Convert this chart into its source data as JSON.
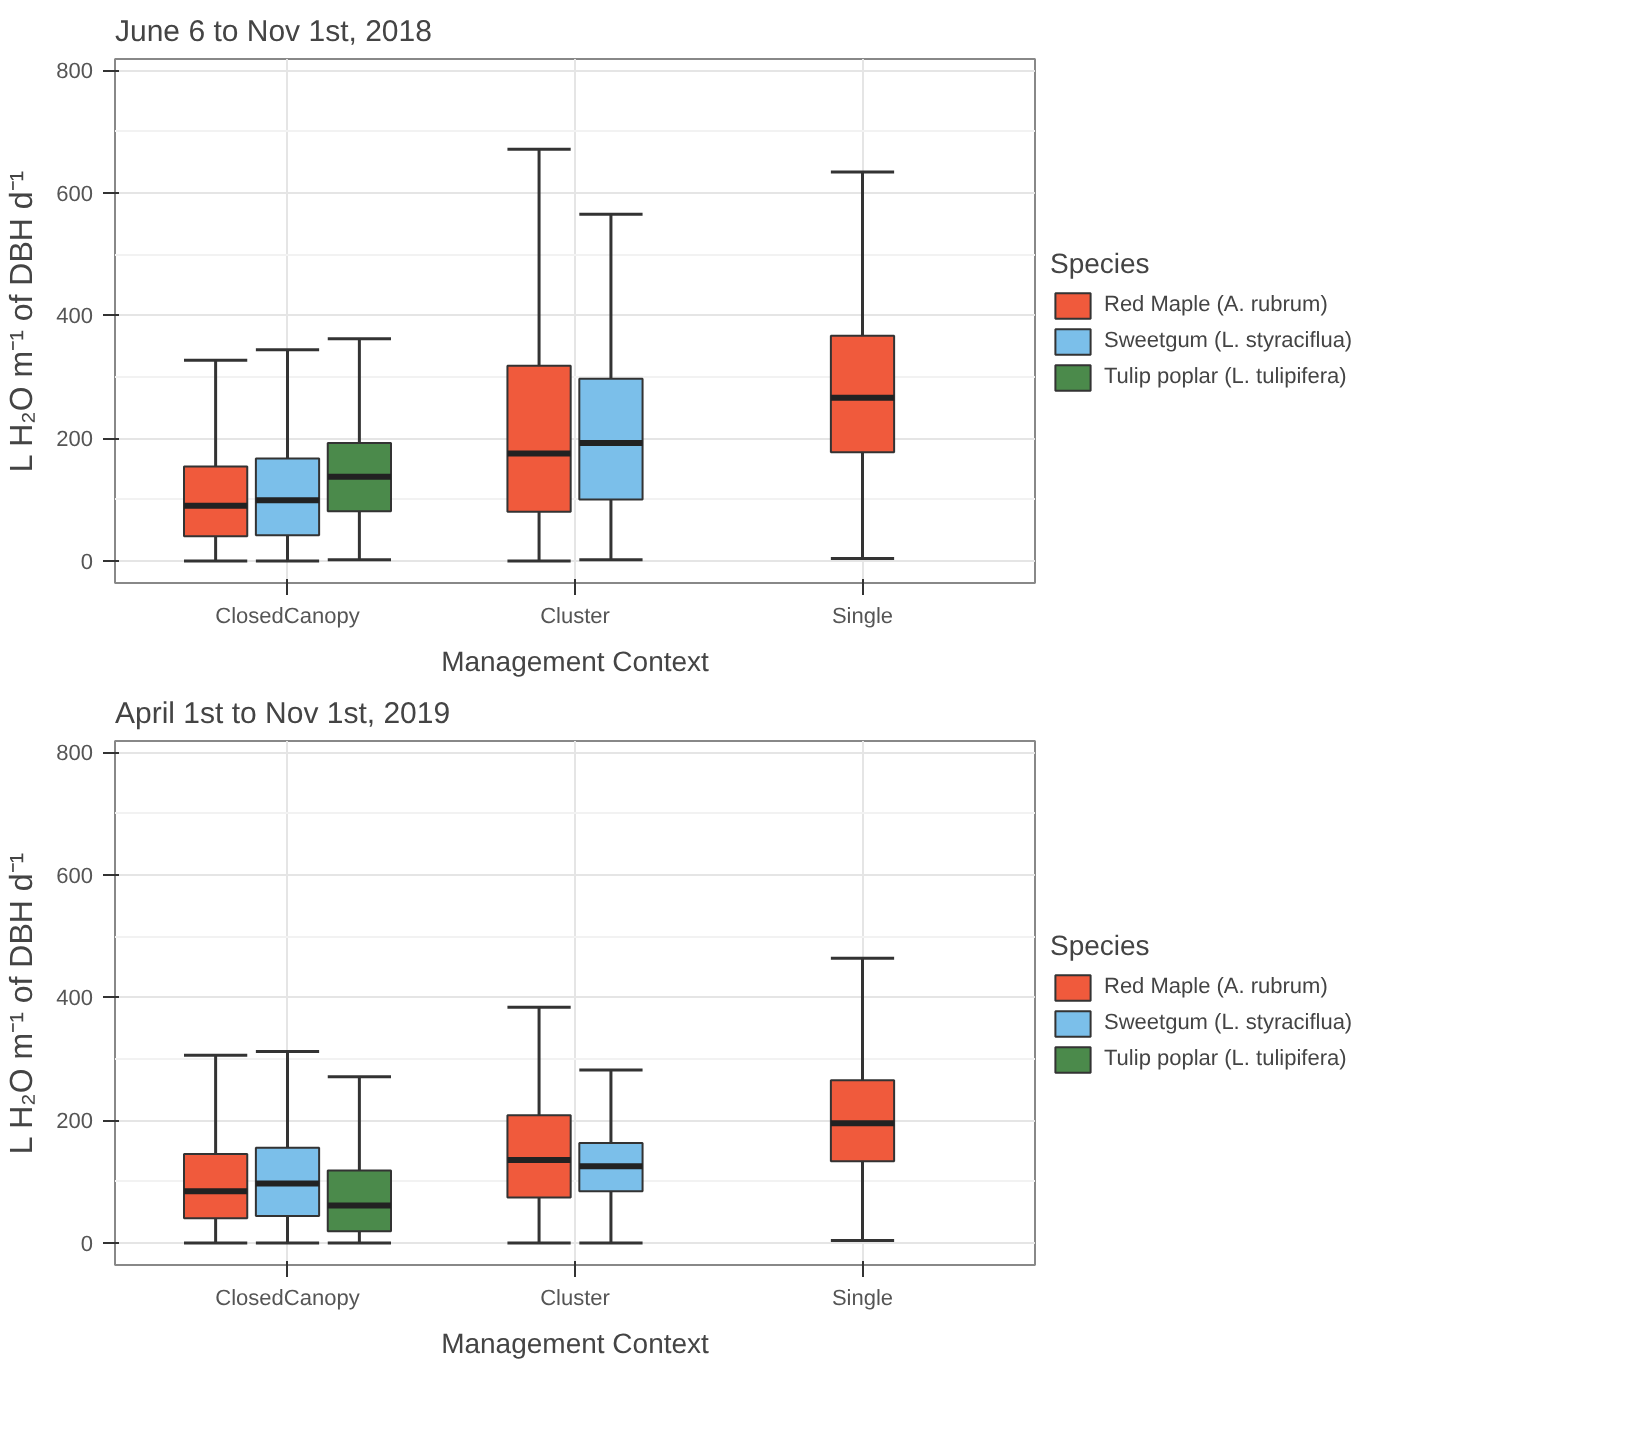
{
  "chart_data": [
    {
      "type": "box",
      "title": "June 6 to Nov 1st, 2018",
      "xlabel": "Management Context",
      "ylabel": "L H₂O m⁻¹ of DBH d⁻¹",
      "legend_title": "Species",
      "legend": "right",
      "grid": true,
      "categories": [
        "ClosedCanopy",
        "Cluster",
        "Single"
      ],
      "ylim": [
        -36,
        818
      ],
      "yticks": [
        0,
        200,
        400,
        600,
        800
      ],
      "series": [
        {
          "name": "Red Maple (A. rubrum)",
          "color": "#f05a3c",
          "boxes": [
            {
              "low": 0,
              "q1": 40,
              "median": 90,
              "q3": 154,
              "high": 327
            },
            {
              "low": 0,
              "q1": 80,
              "median": 175,
              "q3": 318,
              "high": 671
            },
            {
              "low": 4,
              "q1": 177,
              "median": 266,
              "q3": 367,
              "high": 634
            }
          ]
        },
        {
          "name": "Sweetgum (L. styraciflua)",
          "color": "#7bbfea",
          "boxes": [
            {
              "low": 0,
              "q1": 42,
              "median": 99,
              "q3": 167,
              "high": 344
            },
            {
              "low": 2,
              "q1": 100,
              "median": 192,
              "q3": 297,
              "high": 565
            },
            null
          ]
        },
        {
          "name": "Tulip poplar (L. tulipifera)",
          "color": "#4b8a4b",
          "boxes": [
            {
              "low": 2,
              "q1": 81,
              "median": 137,
              "q3": 192,
              "high": 362
            },
            null,
            null
          ]
        }
      ]
    },
    {
      "type": "box",
      "title": "April 1st to Nov 1st, 2019",
      "xlabel": "Management Context",
      "ylabel": "L H₂O m⁻¹ of DBH d⁻¹",
      "legend_title": "Species",
      "legend": "right",
      "grid": true,
      "categories": [
        "ClosedCanopy",
        "Cluster",
        "Single"
      ],
      "ylim": [
        -36,
        818
      ],
      "yticks": [
        0,
        200,
        400,
        600,
        800
      ],
      "series": [
        {
          "name": "Red Maple (A. rubrum)",
          "color": "#f05a3c",
          "boxes": [
            {
              "low": 0,
              "q1": 40,
              "median": 84,
              "q3": 145,
              "high": 306
            },
            {
              "low": 0,
              "q1": 74,
              "median": 135,
              "q3": 208,
              "high": 384
            },
            {
              "low": 4,
              "q1": 133,
              "median": 195,
              "q3": 265,
              "high": 464
            }
          ]
        },
        {
          "name": "Sweetgum (L. styraciflua)",
          "color": "#7bbfea",
          "boxes": [
            {
              "low": 0,
              "q1": 44,
              "median": 97,
              "q3": 155,
              "high": 312
            },
            {
              "low": 0,
              "q1": 84,
              "median": 125,
              "q3": 163,
              "high": 282
            },
            null
          ]
        },
        {
          "name": "Tulip poplar (L. tulipifera)",
          "color": "#4b8a4b",
          "boxes": [
            {
              "low": 0,
              "q1": 19,
              "median": 61,
              "q3": 118,
              "high": 271
            },
            null,
            null
          ]
        }
      ]
    }
  ]
}
